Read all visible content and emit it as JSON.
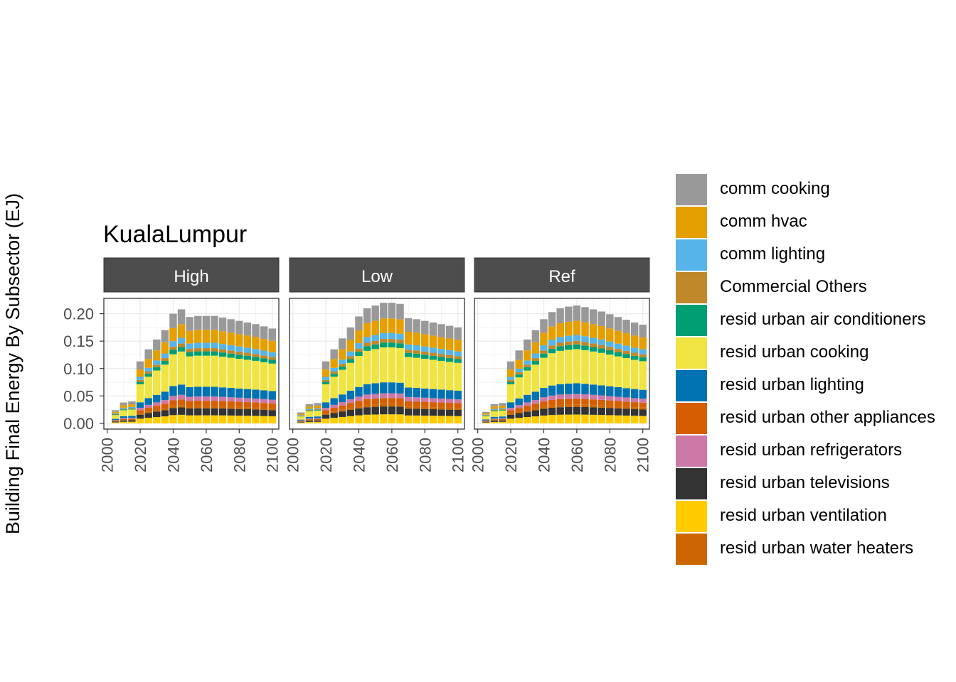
{
  "chart_data": {
    "type": "bar",
    "stacked": true,
    "title": "KualaLumpur",
    "ylabel": "Building Final Energy By Subsector (EJ)",
    "xlabel": "",
    "ylim": [
      0,
      0.22
    ],
    "yticks": [
      "0.00",
      "0.05",
      "0.10",
      "0.15",
      "0.20"
    ],
    "ytick_values": [
      0,
      0.05,
      0.1,
      0.15,
      0.2
    ],
    "xticks": [
      2000,
      2020,
      2040,
      2060,
      2080,
      2100
    ],
    "xtick_labels": [
      "2000",
      "2020",
      "2040",
      "2060",
      "2080",
      "2100"
    ],
    "grid": true,
    "legend_position": "right",
    "x": [
      2005,
      2010,
      2015,
      2020,
      2025,
      2030,
      2035,
      2040,
      2045,
      2050,
      2055,
      2060,
      2065,
      2070,
      2075,
      2080,
      2085,
      2090,
      2095,
      2100
    ],
    "series_meta": [
      {
        "name": "resid urban ventilation",
        "color": "#FFCC00",
        "share": 0.075
      },
      {
        "name": "resid urban televisions",
        "color": "#333333",
        "share": 0.065
      },
      {
        "name": "resid urban water heaters",
        "color": "#CC6600",
        "share": 0.02
      },
      {
        "name": "resid urban other appliances",
        "color": "#D55E00",
        "share": 0.05
      },
      {
        "name": "resid urban refrigerators",
        "color": "#CC79A7",
        "share": 0.04
      },
      {
        "name": "resid urban lighting",
        "color": "#0072B2",
        "share": 0.09
      },
      {
        "name": "resid urban cooking",
        "color": "#F0E442",
        "share": 0.29
      },
      {
        "name": "resid urban air conditioners",
        "color": "#009E73",
        "share": 0.04
      },
      {
        "name": "Commercial Others",
        "color": "#C1882A",
        "share": 0.03
      },
      {
        "name": "comm lighting",
        "color": "#56B4E9",
        "share": 0.05
      },
      {
        "name": "comm hvac",
        "color": "#E69F00",
        "share": 0.12
      },
      {
        "name": "comm cooking",
        "color": "#999999",
        "share": 0.13
      }
    ],
    "panels": [
      {
        "name": "High",
        "totals": [
          0.024,
          0.038,
          0.04,
          0.113,
          0.135,
          0.153,
          0.17,
          0.2,
          0.208,
          0.194,
          0.196,
          0.196,
          0.196,
          0.193,
          0.19,
          0.187,
          0.184,
          0.181,
          0.177,
          0.173
        ]
      },
      {
        "name": "Low",
        "totals": [
          0.02,
          0.035,
          0.037,
          0.113,
          0.135,
          0.155,
          0.175,
          0.195,
          0.21,
          0.215,
          0.22,
          0.22,
          0.218,
          0.192,
          0.19,
          0.187,
          0.184,
          0.181,
          0.178,
          0.175
        ]
      },
      {
        "name": "Ref",
        "totals": [
          0.021,
          0.035,
          0.037,
          0.113,
          0.133,
          0.153,
          0.17,
          0.19,
          0.203,
          0.21,
          0.213,
          0.215,
          0.212,
          0.208,
          0.204,
          0.199,
          0.194,
          0.189,
          0.184,
          0.18
        ]
      }
    ]
  },
  "legend": {
    "items": [
      {
        "label": "comm cooking",
        "color": "#999999"
      },
      {
        "label": "comm hvac",
        "color": "#E69F00"
      },
      {
        "label": "comm lighting",
        "color": "#56B4E9"
      },
      {
        "label": "Commercial Others",
        "color": "#C1882A"
      },
      {
        "label": "resid urban air conditioners",
        "color": "#009E73"
      },
      {
        "label": "resid urban cooking",
        "color": "#F0E442"
      },
      {
        "label": "resid urban lighting",
        "color": "#0072B2"
      },
      {
        "label": "resid urban other appliances",
        "color": "#D55E00"
      },
      {
        "label": "resid urban refrigerators",
        "color": "#CC79A7"
      },
      {
        "label": "resid urban televisions",
        "color": "#333333"
      },
      {
        "label": "resid urban ventilation",
        "color": "#FFCC00"
      },
      {
        "label": "resid urban water heaters",
        "color": "#CC6600"
      }
    ]
  }
}
